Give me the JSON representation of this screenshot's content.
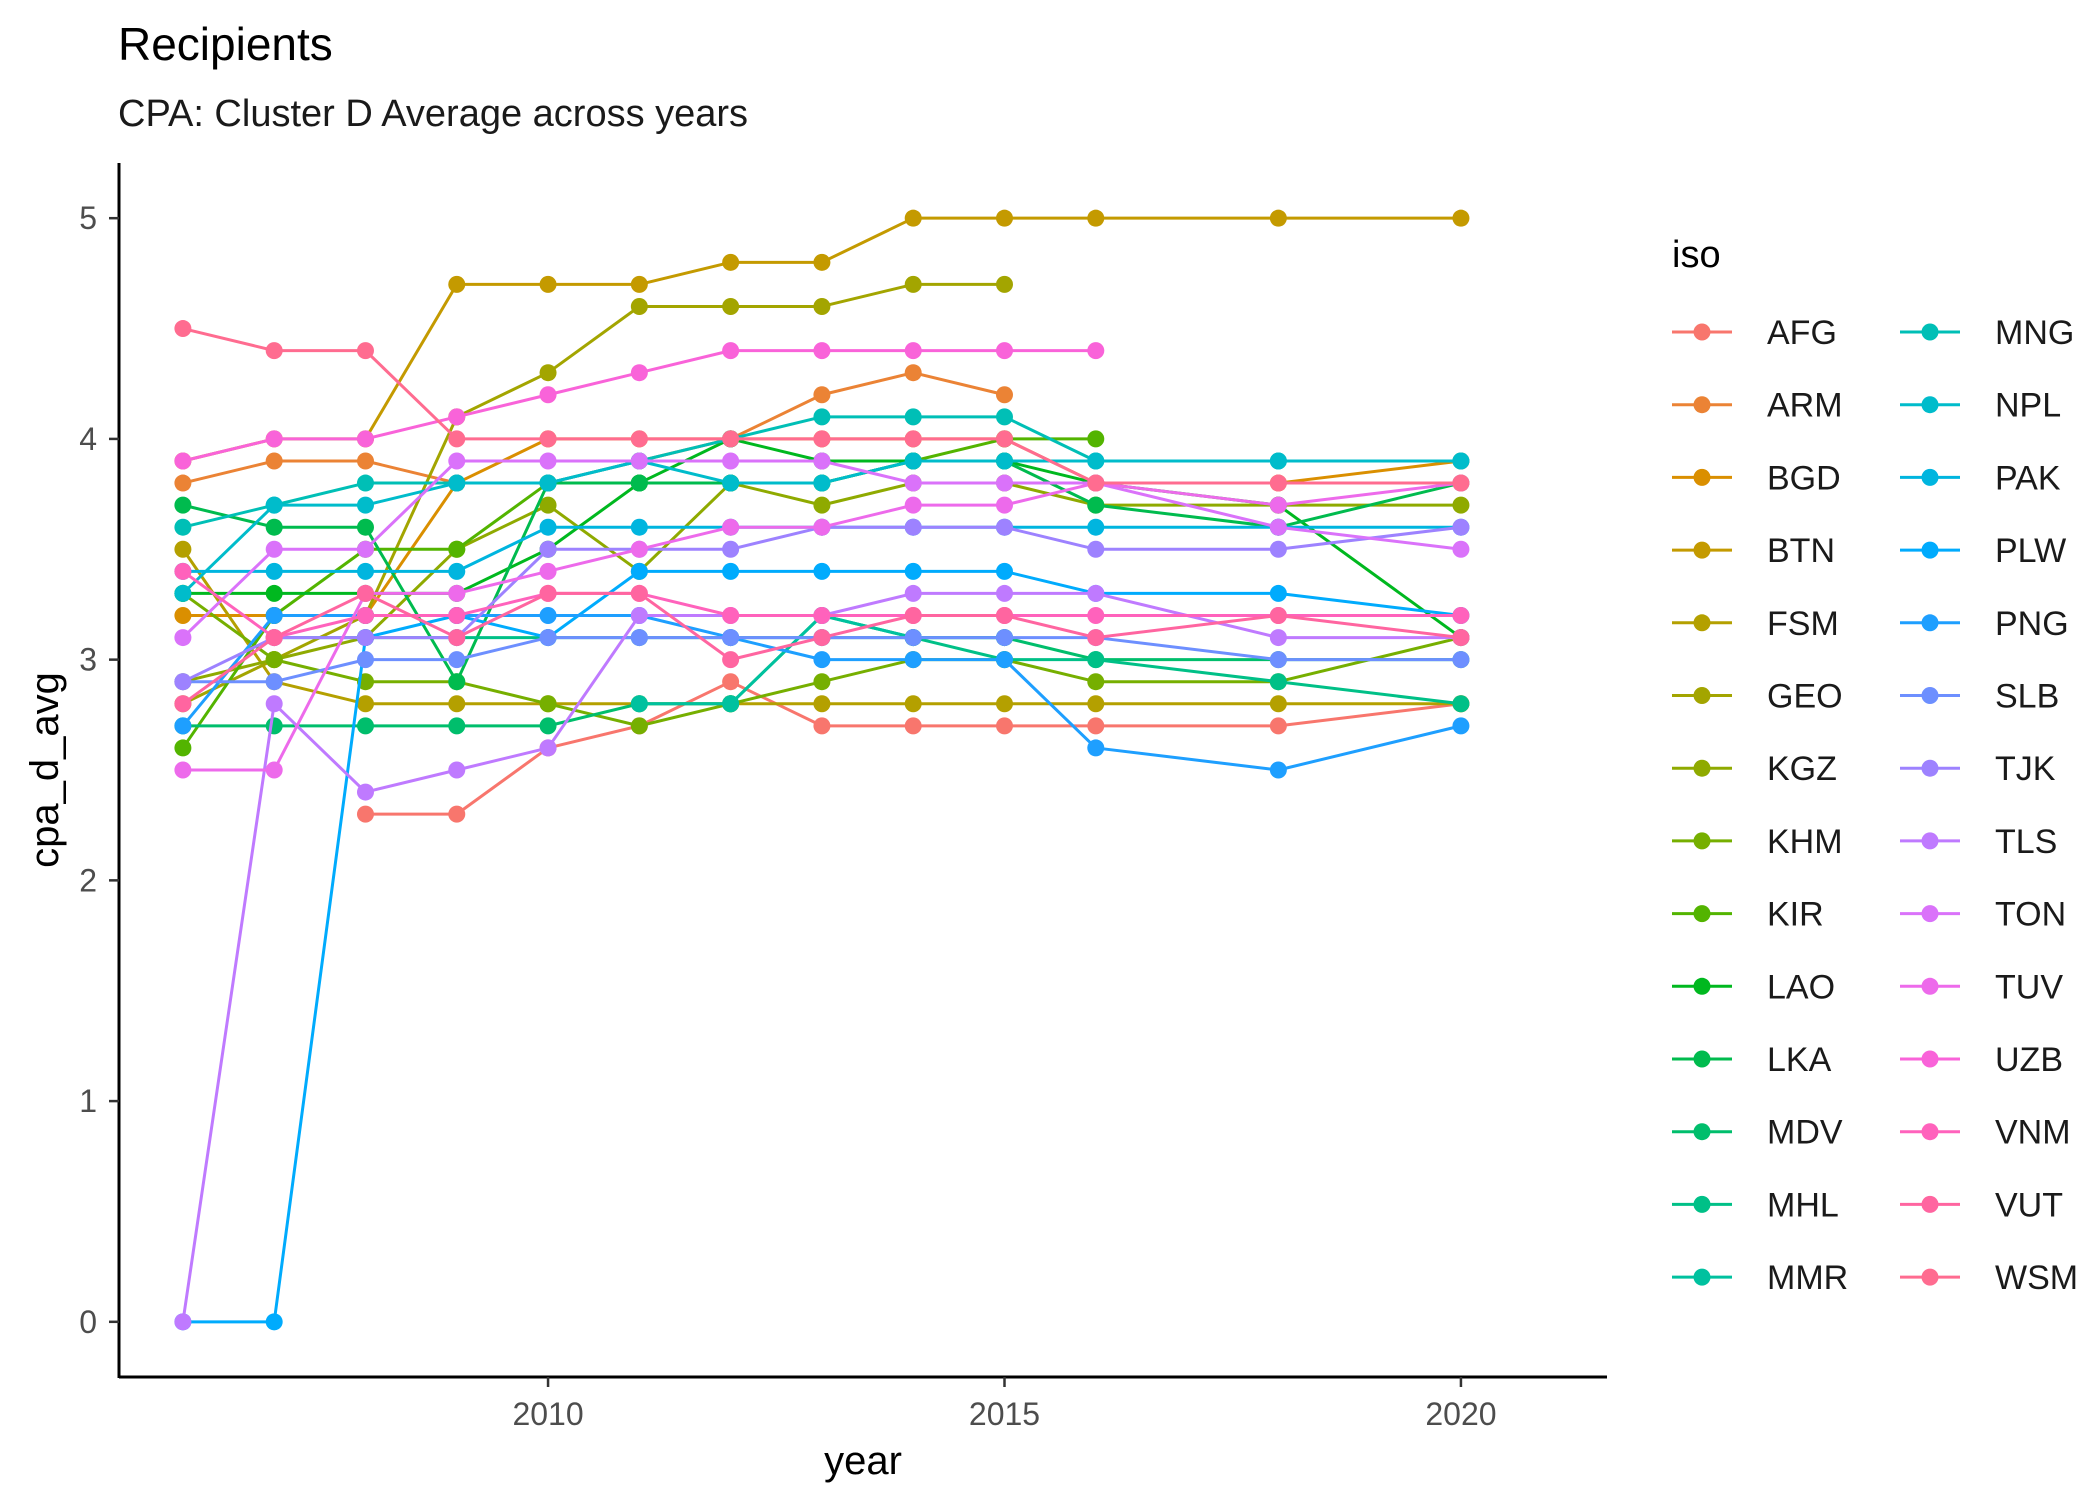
{
  "chart_data": {
    "type": "line",
    "title": "Recipients",
    "subtitle": "CPA: Cluster D Average across years",
    "xlabel": "year",
    "ylabel": "cpa_d_avg",
    "xlim": [
      2005.3,
      2021.6
    ],
    "ylim": [
      -0.25,
      5.25
    ],
    "x_ticks": [
      2010,
      2015,
      2020
    ],
    "y_ticks": [
      0,
      1,
      2,
      3,
      4,
      5
    ],
    "grid": false,
    "legend": {
      "title": "iso",
      "placement": "right",
      "columns": 2
    },
    "x": [
      2006,
      2007,
      2008,
      2009,
      2010,
      2011,
      2012,
      2013,
      2014,
      2015,
      2016,
      2018,
      2020
    ],
    "series": [
      {
        "name": "AFG",
        "color": "#F8766D",
        "values": [
          null,
          null,
          2.3,
          2.3,
          2.6,
          2.7,
          2.9,
          2.7,
          2.7,
          2.7,
          2.7,
          2.7,
          2.8
        ]
      },
      {
        "name": "ARM",
        "color": "#EB8335",
        "values": [
          3.8,
          3.9,
          3.9,
          3.8,
          3.8,
          3.9,
          4.0,
          4.2,
          4.3,
          4.2,
          null,
          null,
          null
        ]
      },
      {
        "name": "BGD",
        "color": "#DA8F00",
        "values": [
          3.2,
          3.2,
          3.2,
          3.8,
          4.0,
          4.0,
          4.0,
          4.0,
          4.0,
          4.0,
          3.8,
          3.8,
          3.9
        ]
      },
      {
        "name": "BTN",
        "color": "#C49A00",
        "values": [
          3.9,
          4.0,
          4.0,
          4.7,
          4.7,
          4.7,
          4.8,
          4.8,
          5.0,
          5.0,
          5.0,
          5.0,
          5.0
        ]
      },
      {
        "name": "FSM",
        "color": "#B4A000",
        "values": [
          3.5,
          2.9,
          2.8,
          2.8,
          2.8,
          2.8,
          2.8,
          2.8,
          2.8,
          2.8,
          2.8,
          2.8,
          2.8
        ]
      },
      {
        "name": "GEO",
        "color": "#A3A500",
        "values": [
          2.8,
          3.0,
          3.2,
          4.1,
          4.3,
          4.6,
          4.6,
          4.6,
          4.7,
          4.7,
          null,
          null,
          null
        ]
      },
      {
        "name": "KGZ",
        "color": "#8FAA00",
        "values": [
          2.9,
          3.0,
          3.1,
          3.5,
          3.7,
          3.4,
          3.8,
          3.7,
          3.8,
          3.8,
          3.7,
          3.7,
          3.7
        ]
      },
      {
        "name": "KHM",
        "color": "#76AF00",
        "values": [
          3.3,
          3.0,
          2.9,
          2.9,
          2.8,
          2.7,
          2.8,
          2.9,
          3.0,
          3.0,
          2.9,
          2.9,
          3.1
        ]
      },
      {
        "name": "KIR",
        "color": "#53B400",
        "values": [
          2.6,
          3.2,
          3.5,
          3.5,
          3.8,
          3.8,
          3.8,
          3.8,
          3.9,
          4.0,
          4.0,
          null,
          null
        ]
      },
      {
        "name": "LAO",
        "color": "#00B81F",
        "values": [
          3.3,
          3.3,
          3.3,
          3.3,
          3.5,
          3.8,
          4.0,
          3.9,
          3.9,
          3.9,
          3.8,
          3.7,
          3.1
        ]
      },
      {
        "name": "LKA",
        "color": "#00BB4E",
        "values": [
          3.7,
          3.6,
          3.6,
          2.9,
          3.8,
          3.8,
          3.8,
          3.8,
          3.9,
          3.9,
          3.7,
          3.6,
          3.8
        ]
      },
      {
        "name": "MDV",
        "color": "#00BE6C",
        "values": [
          2.7,
          2.7,
          2.7,
          2.7,
          2.7,
          2.8,
          2.8,
          3.2,
          3.1,
          3.1,
          3.0,
          3.0,
          3.0
        ]
      },
      {
        "name": "MHL",
        "color": "#00C087",
        "values": [
          null,
          3.1,
          3.1,
          3.1,
          3.1,
          3.1,
          3.1,
          3.1,
          3.1,
          3.0,
          3.0,
          2.9,
          2.8
        ]
      },
      {
        "name": "MMR",
        "color": "#00C19F",
        "values": [
          null,
          null,
          null,
          null,
          null,
          2.8,
          2.8,
          3.2,
          3.1,
          3.1,
          null,
          null,
          null
        ]
      },
      {
        "name": "MNG",
        "color": "#00BFB6",
        "values": [
          3.6,
          3.7,
          3.8,
          3.8,
          3.8,
          3.9,
          4.0,
          4.1,
          4.1,
          4.1,
          3.9,
          3.9,
          3.9
        ]
      },
      {
        "name": "NPL",
        "color": "#00BCCB",
        "values": [
          3.3,
          3.7,
          3.7,
          3.8,
          3.8,
          3.9,
          3.8,
          3.8,
          3.9,
          3.9,
          3.9,
          3.9,
          3.9
        ]
      },
      {
        "name": "PAK",
        "color": "#00B5DF",
        "values": [
          3.4,
          3.4,
          3.4,
          3.4,
          3.6,
          3.6,
          3.6,
          3.6,
          3.6,
          3.6,
          3.6,
          3.6,
          3.6
        ]
      },
      {
        "name": "PLW",
        "color": "#00ABFD",
        "values": [
          0.0,
          0.0,
          3.1,
          3.2,
          3.1,
          3.4,
          3.4,
          3.4,
          3.4,
          3.4,
          3.3,
          3.3,
          3.2
        ]
      },
      {
        "name": "PNG",
        "color": "#1E9FFF",
        "values": [
          2.7,
          3.2,
          3.2,
          3.2,
          3.2,
          3.2,
          3.1,
          3.0,
          3.0,
          3.0,
          2.6,
          2.5,
          2.7
        ]
      },
      {
        "name": "SLB",
        "color": "#6D8FFF",
        "values": [
          2.9,
          2.9,
          3.0,
          3.0,
          3.1,
          3.1,
          3.1,
          3.1,
          3.1,
          3.1,
          3.1,
          3.0,
          3.0
        ]
      },
      {
        "name": "TJK",
        "color": "#9D82FF",
        "values": [
          2.9,
          3.1,
          3.1,
          3.1,
          3.5,
          3.5,
          3.5,
          3.6,
          3.6,
          3.6,
          3.5,
          3.5,
          3.6
        ]
      },
      {
        "name": "TLS",
        "color": "#BF7AFF",
        "values": [
          0.0,
          2.8,
          2.4,
          2.5,
          2.6,
          3.2,
          3.2,
          3.2,
          3.3,
          3.3,
          3.3,
          3.1,
          3.1
        ]
      },
      {
        "name": "TON",
        "color": "#DA72FA",
        "values": [
          3.1,
          3.5,
          3.5,
          3.9,
          3.9,
          3.9,
          3.9,
          3.9,
          3.8,
          3.8,
          3.8,
          3.6,
          3.5
        ]
      },
      {
        "name": "TUV",
        "color": "#ED6AEB",
        "values": [
          2.5,
          2.5,
          3.3,
          3.3,
          3.4,
          3.5,
          3.6,
          3.6,
          3.7,
          3.7,
          3.8,
          3.7,
          3.8
        ]
      },
      {
        "name": "UZB",
        "color": "#F963D9",
        "values": [
          3.9,
          4.0,
          4.0,
          4.1,
          4.2,
          4.3,
          4.4,
          4.4,
          4.4,
          4.4,
          4.4,
          null,
          null
        ]
      },
      {
        "name": "VNM",
        "color": "#FF62BC",
        "values": [
          3.4,
          3.1,
          3.2,
          3.2,
          3.3,
          3.3,
          3.2,
          3.2,
          3.2,
          3.2,
          3.2,
          3.2,
          3.2
        ]
      },
      {
        "name": "VUT",
        "color": "#FF65A0",
        "values": [
          2.8,
          3.1,
          3.3,
          3.1,
          3.3,
          3.3,
          3.0,
          3.1,
          3.2,
          3.2,
          3.1,
          3.2,
          3.1
        ]
      },
      {
        "name": "WSM",
        "color": "#FF6C90",
        "values": [
          4.5,
          4.4,
          4.4,
          4.0,
          4.0,
          4.0,
          4.0,
          4.0,
          4.0,
          4.0,
          3.8,
          3.8,
          3.8
        ]
      }
    ]
  }
}
